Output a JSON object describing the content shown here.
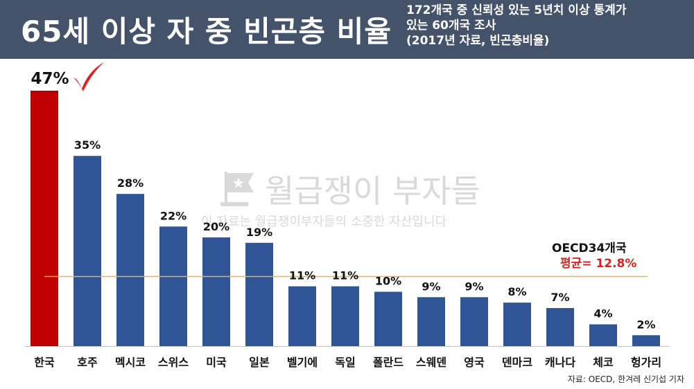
{
  "header": {
    "title": "65세 이상 자 중 빈곤층 비율",
    "subtitle_lines": [
      "172개국 중 신뢰성 있는 5년치 이상 통계가",
      "있는 60개국 조사",
      "(2017년 자료, 빈곤층비율)"
    ]
  },
  "watermark": {
    "brand": "월급쟁이 부자들",
    "line": "이 자료는 월급쟁이부자들의 소중한 자산입니다"
  },
  "average": {
    "label": "OECD34개국",
    "value_text": "평균= 12.8%",
    "value": 12.8
  },
  "source": "자료: OECD, 한겨레 신기섭 기자",
  "colors": {
    "header_bg": "#45536a",
    "highlight_bar": "#c00000",
    "bar": "#2f5597",
    "average_line": "#f2b041",
    "average_value": "#e02020",
    "check_mark": "#e02020"
  },
  "chart_data": {
    "type": "bar",
    "title": "65세 이상 자 중 빈곤층 비율",
    "categories": [
      "한국",
      "호주",
      "멕시코",
      "스위스",
      "미국",
      "일본",
      "벨기에",
      "독일",
      "폴란드",
      "스웨덴",
      "영국",
      "덴마크",
      "캐나다",
      "체코",
      "헝가리"
    ],
    "values": [
      47,
      35,
      28,
      22,
      20,
      19,
      11,
      11,
      10,
      9,
      9,
      8,
      7,
      4,
      2
    ],
    "value_labels": [
      "47%",
      "35%",
      "28%",
      "22%",
      "20%",
      "19%",
      "11%",
      "11%",
      "10%",
      "9%",
      "9%",
      "8%",
      "7%",
      "4%",
      "2%"
    ],
    "highlight_index": 0,
    "reference_line": 12.8,
    "ylim": [
      0,
      47
    ],
    "grid": false,
    "xlabel": "",
    "ylabel": ""
  }
}
